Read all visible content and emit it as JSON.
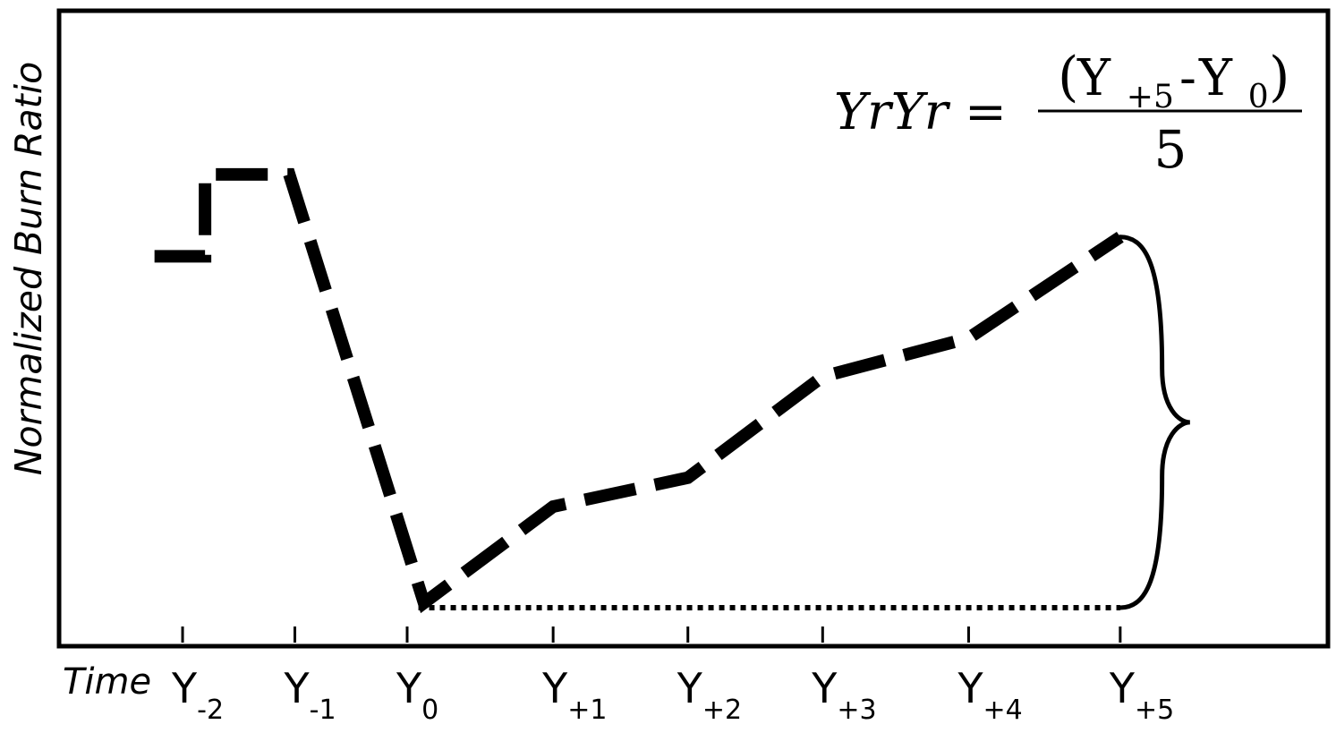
{
  "chart_data": {
    "type": "line",
    "xlabel": "Time",
    "ylabel": "Normalized Burn Ratio",
    "categories": [
      {
        "base": "Y",
        "sub": "-2"
      },
      {
        "base": "Y",
        "sub": "-1"
      },
      {
        "base": "Y",
        "sub": "0"
      },
      {
        "base": "Y",
        "sub": "+1"
      },
      {
        "base": "Y",
        "sub": "+2"
      },
      {
        "base": "Y",
        "sub": "+3"
      },
      {
        "base": "Y",
        "sub": "+4"
      },
      {
        "base": "Y",
        "sub": "+5"
      }
    ],
    "tick_positions": [
      -2,
      -1,
      0,
      1.3,
      2.5,
      3.7,
      5.0,
      6.35
    ],
    "series": [
      {
        "style": "dashed",
        "points": [
          [
            -2.25,
            0.73
          ],
          [
            -1.8,
            0.73
          ],
          [
            -1.8,
            0.9
          ],
          [
            -1.05,
            0.9
          ],
          [
            0.15,
            0.01
          ],
          [
            1.3,
            0.21
          ],
          [
            2.5,
            0.27
          ],
          [
            3.7,
            0.48
          ],
          [
            5.0,
            0.56
          ],
          [
            6.35,
            0.77
          ]
        ]
      },
      {
        "style": "dotted",
        "points": [
          [
            0.1,
            0.0
          ],
          [
            6.35,
            0.0
          ]
        ]
      }
    ],
    "xlim": [
      -3.1,
      8.2
    ],
    "ylim": [
      -0.08,
      1.24
    ],
    "annotations": {
      "brace": {
        "x": 6.35,
        "y_from": 0.0,
        "y_to": 0.77
      },
      "formula": {
        "lhs": "YrYr",
        "equals": "=",
        "numerator": {
          "open": "(",
          "term1": {
            "base": "Y",
            "sub": "+5"
          },
          "minus": "-",
          "term2": {
            "base": "Y",
            "sub": "0"
          },
          "close": ")"
        },
        "denominator": "5"
      }
    }
  }
}
